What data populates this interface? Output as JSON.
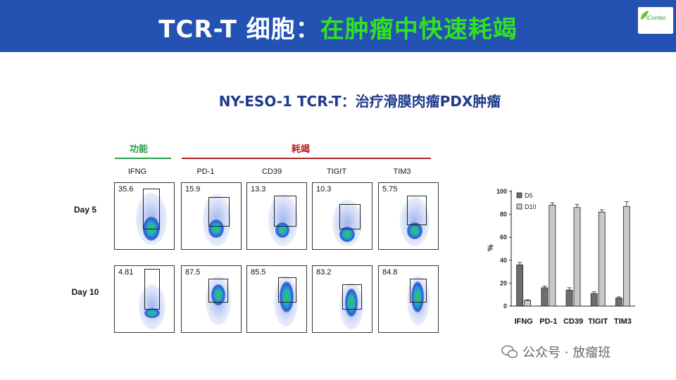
{
  "header": {
    "title_prefix": "TCR-T 细胞：",
    "title_highlight": "在肿瘤中快速耗竭",
    "colors": {
      "bar": "#2352b3",
      "highlight": "#31e21e"
    },
    "logo_text": "iCombo"
  },
  "subtitle": "NY-ESO-1 TCR-T：治疗滑膜肉瘤PDX肿瘤",
  "flow": {
    "groups": {
      "function": "功能",
      "exhaustion": "耗竭"
    },
    "columns": [
      "IFNG",
      "PD-1",
      "CD39",
      "TIGIT",
      "TIM3"
    ],
    "rows": [
      {
        "label": "Day 5",
        "values": [
          "35.6",
          "15.9",
          "13.3",
          "10.3",
          "5.75"
        ]
      },
      {
        "label": "Day 10",
        "values": [
          "4.81",
          "87.5",
          "85.5",
          "83.2",
          "84.8"
        ]
      }
    ]
  },
  "chart_data": {
    "type": "bar",
    "categories": [
      "IFNG",
      "PD-1",
      "CD39",
      "TIGIT",
      "TIM3"
    ],
    "series": [
      {
        "name": "D5",
        "values": [
          36,
          16,
          14,
          11,
          7
        ],
        "errors": [
          2,
          1.5,
          2,
          1.5,
          1
        ],
        "color": "#6e6e6e"
      },
      {
        "name": "D10",
        "values": [
          5,
          88,
          86,
          82,
          87
        ],
        "errors": [
          0.5,
          2,
          2.5,
          2,
          4
        ],
        "color": "#c8c8c8"
      }
    ],
    "ylabel": "%",
    "ylim": [
      0,
      100
    ],
    "yticks": [
      0,
      20,
      40,
      60,
      80,
      100
    ],
    "legend": "top-left"
  },
  "watermark": "公众号 · 放瘤班"
}
